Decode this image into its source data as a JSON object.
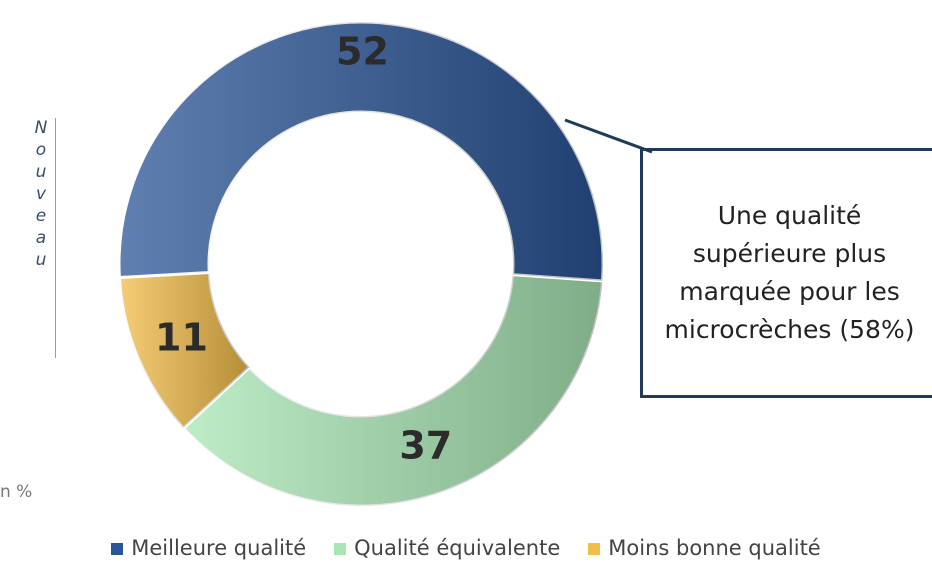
{
  "chart_data": {
    "type": "pie",
    "categories": [
      "Meilleure qualité",
      "Qualité équivalente",
      "Moins bonne qualité"
    ],
    "values": [
      52,
      37,
      11
    ],
    "colors": [
      "#2a5597",
      "#a8e6b4",
      "#f2bd4a"
    ],
    "side_label": "Nouveau",
    "unit_note": "n %",
    "annotation": "Une qualité supérieure plus marquée pour les microcrèches (58%)",
    "legend": "bottom"
  }
}
